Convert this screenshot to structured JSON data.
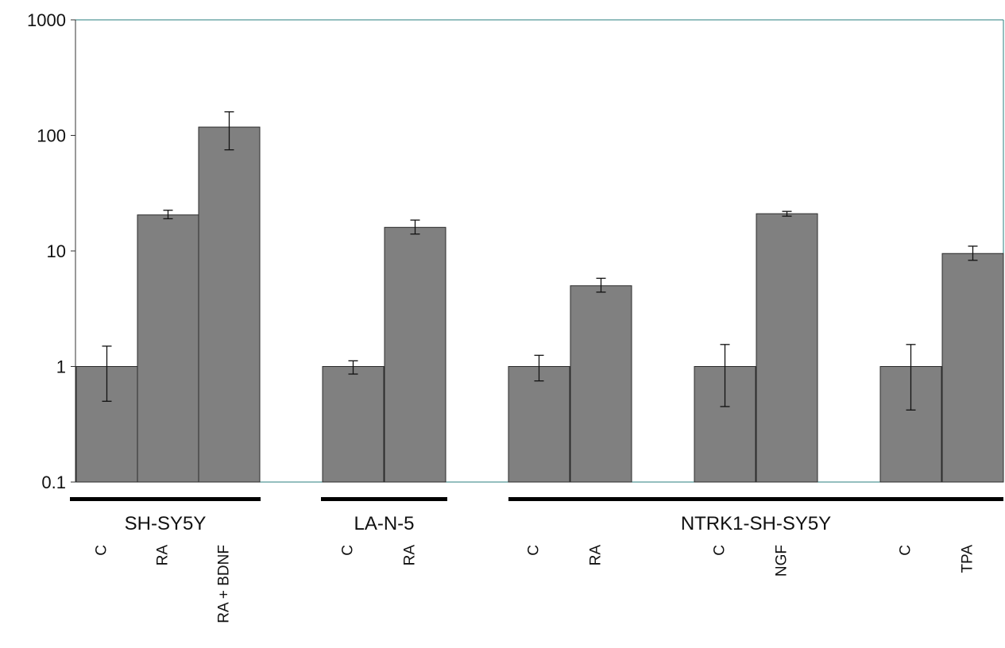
{
  "chart_data": {
    "type": "bar",
    "title": "",
    "xlabel": "",
    "ylabel": "",
    "yscale": "log",
    "ylim": [
      0.1,
      1000
    ],
    "y_ticks": [
      "0.1",
      "1",
      "10",
      "100",
      "1000"
    ],
    "grid": false,
    "legend": "none",
    "bar_color": "#808080",
    "frame_color": "#2a7f7f",
    "categories": [
      "C",
      "RA",
      "RA + BDNF",
      "C",
      "RA",
      "C",
      "RA",
      "C",
      "NGF",
      "C",
      "TPA"
    ],
    "values": [
      1,
      20.5,
      118,
      1,
      16,
      1,
      5,
      1,
      21,
      1,
      9.5
    ],
    "error_low": [
      0.5,
      19,
      75,
      0.86,
      14,
      0.75,
      4.4,
      0.45,
      20,
      0.42,
      8.3
    ],
    "error_high": [
      1.5,
      22.5,
      160,
      1.12,
      18.5,
      1.25,
      5.8,
      1.55,
      22,
      1.55,
      11
    ],
    "groups": [
      {
        "label": "SH-SY5Y",
        "bars": [
          0,
          1,
          2
        ]
      },
      {
        "label": "LA-N-5",
        "bars": [
          3,
          4
        ]
      },
      {
        "label": "NTRK1-SH-SY5Y",
        "bars": [
          5,
          6,
          7,
          8,
          9,
          10
        ]
      }
    ]
  }
}
